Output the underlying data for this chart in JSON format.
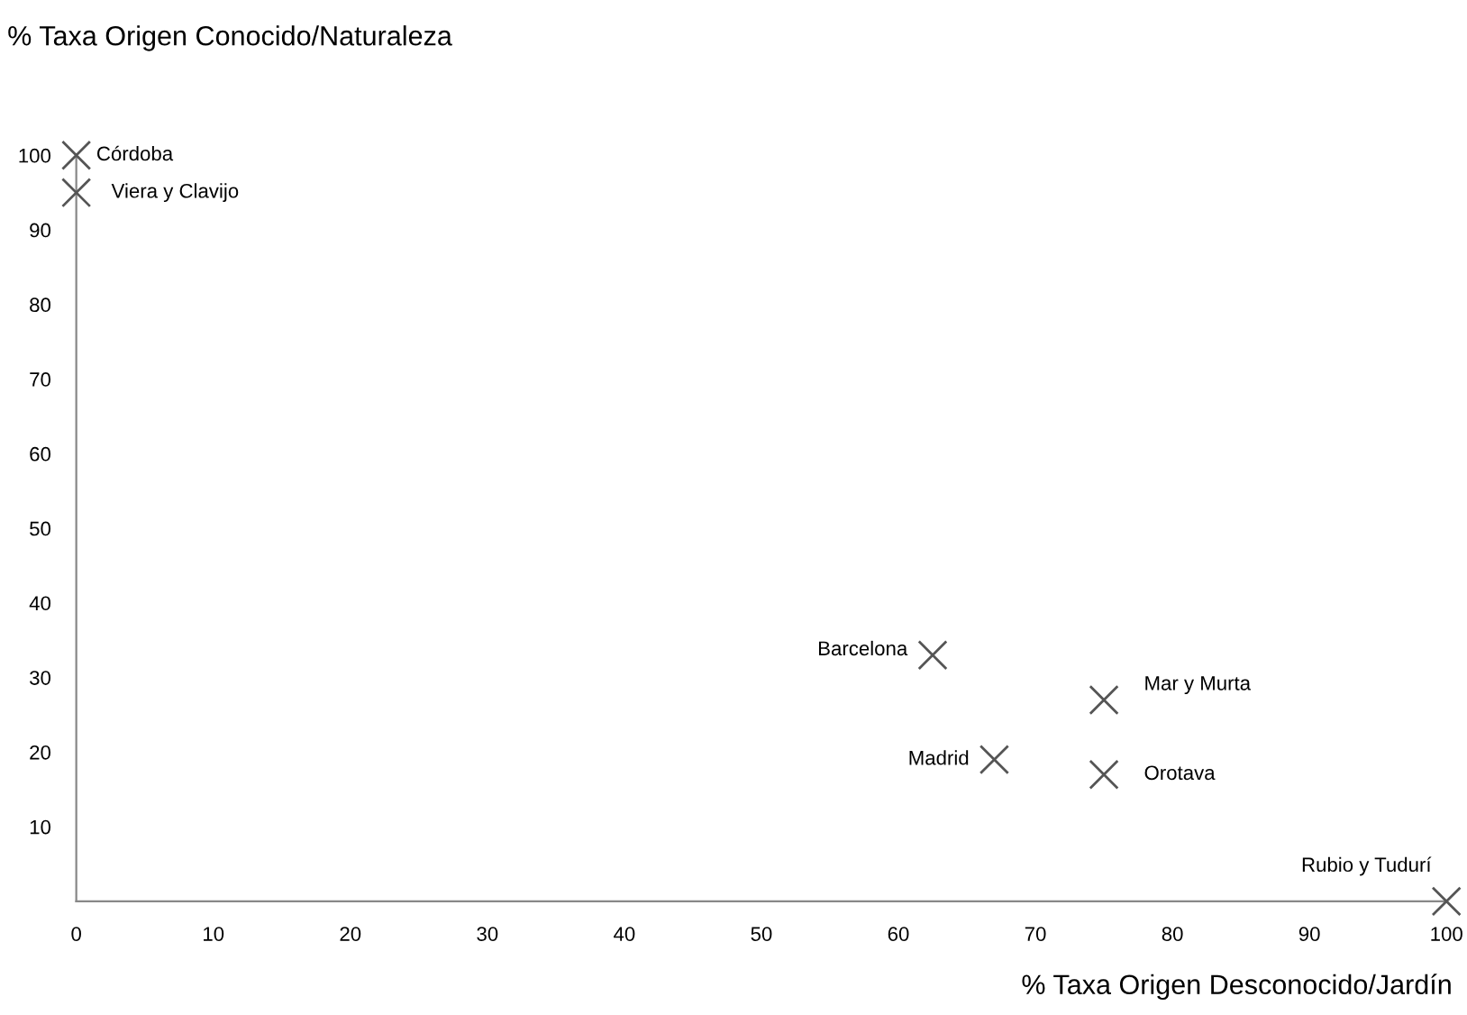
{
  "chart_data": {
    "type": "scatter",
    "xlabel": "% Taxa Origen Desconocido/Jardín",
    "ylabel": "% Taxa Origen Conocido/Naturaleza",
    "x": [
      0,
      0,
      62.5,
      67,
      75,
      75,
      100
    ],
    "values": [
      100,
      95,
      33,
      19,
      27,
      17,
      0
    ],
    "color": "#555555",
    "marker": "cross",
    "xlim": [
      0,
      100
    ],
    "ylim": [
      0,
      100
    ],
    "xticks": [
      0,
      10,
      20,
      30,
      40,
      50,
      60,
      70,
      80,
      90,
      100
    ],
    "yticks": [
      10,
      20,
      30,
      40,
      50,
      60,
      70,
      80,
      90,
      100
    ],
    "grid": false,
    "annotations": [
      {
        "text": "Córdoba",
        "x": 0,
        "y": 100
      },
      {
        "text": "Viera y Clavijo",
        "x": 0,
        "y": 95
      },
      {
        "text": "Barcelona",
        "x": 62.5,
        "y": 33
      },
      {
        "text": "Madrid",
        "x": 67,
        "y": 19
      },
      {
        "text": "Mar y Murta",
        "x": 75,
        "y": 27
      },
      {
        "text": "Orotava",
        "x": 75,
        "y": 17
      },
      {
        "text": "Rubio y Tudurí",
        "x": 100,
        "y": 0
      }
    ]
  }
}
